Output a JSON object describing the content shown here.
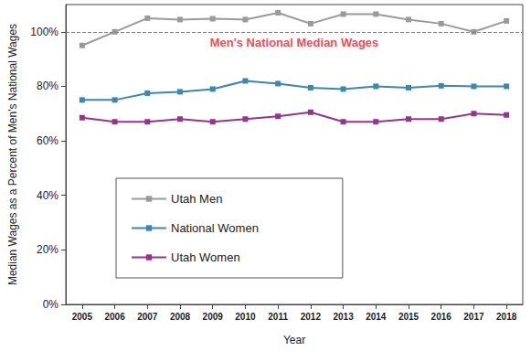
{
  "chart_data": {
    "type": "line",
    "x_label": "Year",
    "y_label": "Median Wages as a Percent of Men's National Wages",
    "categories": [
      "2005",
      "2006",
      "2007",
      "2008",
      "2009",
      "2010",
      "2011",
      "2012",
      "2013",
      "2014",
      "2015",
      "2016",
      "2017",
      "2018"
    ],
    "series": [
      {
        "name": "Utah Men",
        "color": "#9a9a9a",
        "marker": "square",
        "values": [
          95,
          100,
          105,
          104.5,
          104.8,
          104.5,
          107,
          103,
          106.5,
          106.5,
          104.5,
          103,
          100,
          104
        ]
      },
      {
        "name": "National Women",
        "color": "#3b87b1",
        "marker": "square",
        "values": [
          75,
          75,
          77.5,
          78,
          79,
          82,
          81,
          79.5,
          79,
          80,
          79.5,
          80.2,
          80,
          80
        ]
      },
      {
        "name": "Utah Women",
        "color": "#93358d",
        "marker": "square",
        "values": [
          68.5,
          67,
          67,
          68,
          67,
          68,
          69,
          70.5,
          67,
          67,
          68,
          68,
          70,
          69.5
        ]
      }
    ],
    "annotations": [
      {
        "text": "Men's National Median Wages",
        "y": 100,
        "color": "#e8505b",
        "line_style": "dashed"
      }
    ],
    "ylim": [
      0,
      110
    ],
    "yticks": [
      {
        "value": 0,
        "label": "0%"
      },
      {
        "value": 20,
        "label": "20%"
      },
      {
        "value": 40,
        "label": "40%"
      },
      {
        "value": 60,
        "label": "60%"
      },
      {
        "value": 80,
        "label": "80%"
      },
      {
        "value": 100,
        "label": "100%"
      }
    ],
    "grid": false,
    "legend": "lower left"
  }
}
